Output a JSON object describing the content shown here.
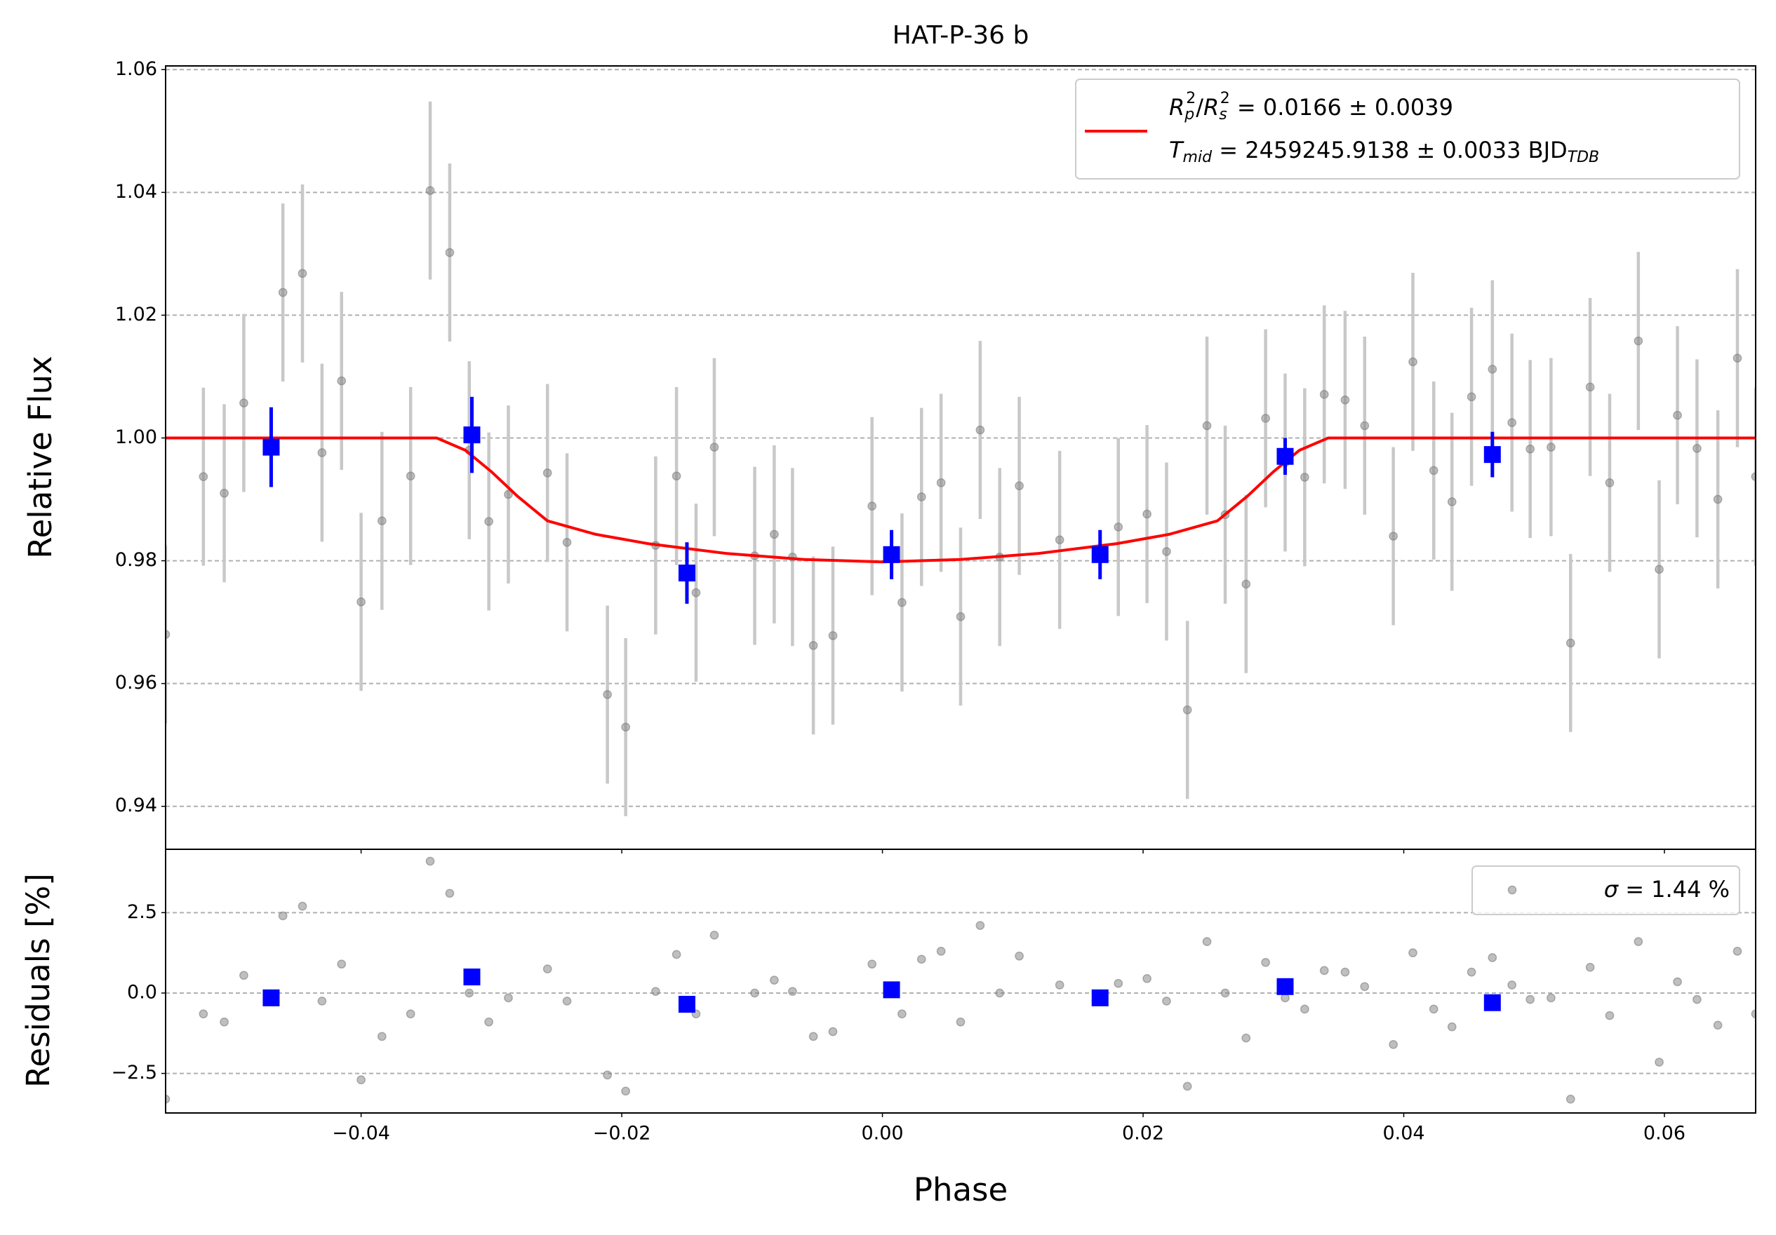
{
  "chart_data": [
    {
      "type": "scatter",
      "title": "HAT-P-36 b",
      "ylabel": "Relative Flux",
      "xlim": [
        -0.055,
        0.067
      ],
      "ylim": [
        0.933,
        1.0606
      ],
      "yticks": [
        0.94,
        0.96,
        0.98,
        {
          "value": 1.0,
          "label": "1.00"
        },
        1.02,
        1.04,
        1.06
      ],
      "grid": true,
      "legend": "upper right",
      "data": {
        "color": "#808080",
        "yerr": 0.0145,
        "x": [
          -0.055,
          -0.0521,
          -0.0505,
          -0.049,
          -0.046,
          -0.0445,
          -0.043,
          -0.0415,
          -0.04,
          -0.0384,
          -0.0362,
          -0.0347,
          -0.0332,
          -0.0317,
          -0.0302,
          -0.0287,
          -0.0257,
          -0.0242,
          -0.0211,
          -0.0197,
          -0.0174,
          -0.0158,
          -0.0143,
          -0.0129,
          -0.0098,
          -0.0083,
          -0.0069,
          -0.0053,
          -0.0038,
          -0.0008,
          0.0015,
          0.003,
          0.0045,
          0.006,
          0.0075,
          0.009,
          0.0105,
          0.0136,
          0.0181,
          0.0203,
          0.0218,
          0.0234,
          0.0249,
          0.0263,
          0.0279,
          0.0294,
          0.0309,
          0.0324,
          0.0339,
          0.0355,
          0.037,
          0.0392,
          0.0407,
          0.0423,
          0.0437,
          0.0452,
          0.0468,
          0.0483,
          0.0497,
          0.0513,
          0.0528,
          0.0543,
          0.0558,
          0.058,
          0.0596,
          0.061,
          0.0625,
          0.0641,
          0.0656,
          0.067
        ],
        "values": [
          0.968,
          0.9937,
          0.991,
          1.0057,
          1.0237,
          1.0268,
          0.9976,
          1.0093,
          0.9733,
          0.9865,
          0.9938,
          1.0403,
          1.0302,
          0.998,
          0.9864,
          0.9908,
          0.9943,
          0.983,
          0.9582,
          0.9529,
          0.9825,
          0.9938,
          0.9748,
          0.9985,
          0.9808,
          0.9843,
          0.9806,
          0.9662,
          0.9678,
          0.9889,
          0.9732,
          0.9904,
          0.9927,
          0.9709,
          1.0013,
          0.9806,
          0.9922,
          0.9834,
          0.9855,
          0.9876,
          0.9815,
          0.9557,
          1.002,
          0.9875,
          0.9762,
          1.0032,
          0.996,
          0.9936,
          1.0071,
          1.0062,
          1.002,
          0.984,
          1.0124,
          0.9947,
          0.9896,
          1.0067,
          1.0112,
          1.0025,
          0.9982,
          0.9985,
          0.9666,
          1.0083,
          0.9927,
          1.0158,
          0.9786,
          1.0037,
          0.9983,
          0.99,
          1.013,
          0.9937
        ]
      },
      "binned": {
        "color": "#0000ff",
        "x": [
          -0.0469,
          -0.0315,
          -0.015,
          0.0007,
          0.0167,
          0.0309,
          0.0468
        ],
        "values": [
          0.9985,
          1.0005,
          0.978,
          0.981,
          0.981,
          0.997,
          0.9973
        ],
        "errors": [
          0.0065,
          0.0062,
          0.005,
          0.004,
          0.004,
          0.003,
          0.0037
        ]
      },
      "model": {
        "color": "#ff0000",
        "x": [
          -0.055,
          -0.0342,
          -0.032,
          -0.03,
          -0.028,
          -0.0257,
          -0.022,
          -0.018,
          -0.012,
          -0.006,
          0,
          0.006,
          0.012,
          0.018,
          0.022,
          0.0257,
          0.028,
          0.03,
          0.032,
          0.0342,
          0.067
        ],
        "values": [
          1,
          1,
          0.998,
          0.9945,
          0.9905,
          0.9865,
          0.9843,
          0.9828,
          0.9812,
          0.9802,
          0.9798,
          0.9802,
          0.9812,
          0.9828,
          0.9843,
          0.9865,
          0.9905,
          0.9945,
          0.998,
          1,
          1
        ],
        "legend_lines": [
          [
            "R",
            "p",
            "2",
            "/",
            "R",
            "s",
            "2",
            " = 0.0166 ± 0.0039"
          ],
          [
            "T",
            "mid",
            " = 2459245.9138 ± 0.0033 BJD",
            "TDB"
          ]
        ]
      }
    },
    {
      "type": "scatter",
      "xlabel": "Phase",
      "ylabel": "Residuals [%]",
      "xlim": [
        -0.055,
        0.067
      ],
      "ylim": [
        -3.73,
        4.47
      ],
      "xticks": [
        {
          "value": -0.04,
          "label": "−0.04"
        },
        {
          "value": -0.02,
          "label": "−0.02"
        },
        {
          "value": 0,
          "label": "0.00"
        },
        0.02,
        0.04,
        0.06
      ],
      "yticks": [
        {
          "value": -2.5,
          "label": "−2.5"
        },
        {
          "value": 0,
          "label": "0.0"
        },
        2.5
      ],
      "grid": true,
      "legend": "upper right",
      "data": {
        "color": "#808080",
        "legend": [
          "σ",
          " = 1.44 %"
        ],
        "values": [
          -3.3,
          -0.65,
          -0.9,
          0.55,
          2.4,
          2.7,
          -0.25,
          0.9,
          -2.7,
          -1.35,
          -0.65,
          4.1,
          3.1,
          0.0,
          -0.9,
          -0.15,
          0.75,
          -0.25,
          -2.55,
          -3.05,
          0.05,
          1.2,
          -0.65,
          1.8,
          0.0,
          0.4,
          0.05,
          -1.35,
          -1.2,
          0.9,
          -0.65,
          1.05,
          1.3,
          -0.9,
          2.1,
          0.0,
          1.15,
          0.25,
          0.3,
          0.45,
          -0.25,
          -2.9,
          1.6,
          0.0,
          -1.4,
          0.95,
          -0.15,
          -0.5,
          0.7,
          0.65,
          0.2,
          -1.6,
          1.25,
          -0.5,
          -1.05,
          0.65,
          1.1,
          0.25,
          -0.2,
          -0.15,
          -3.3,
          0.8,
          -0.7,
          1.6,
          -2.15,
          0.35,
          -0.2,
          -1.0,
          1.3,
          -0.65
        ]
      },
      "binned": {
        "color": "#0000ff",
        "values": [
          -0.15,
          0.5,
          -0.35,
          0.1,
          -0.15,
          0.2,
          -0.3
        ]
      }
    }
  ]
}
